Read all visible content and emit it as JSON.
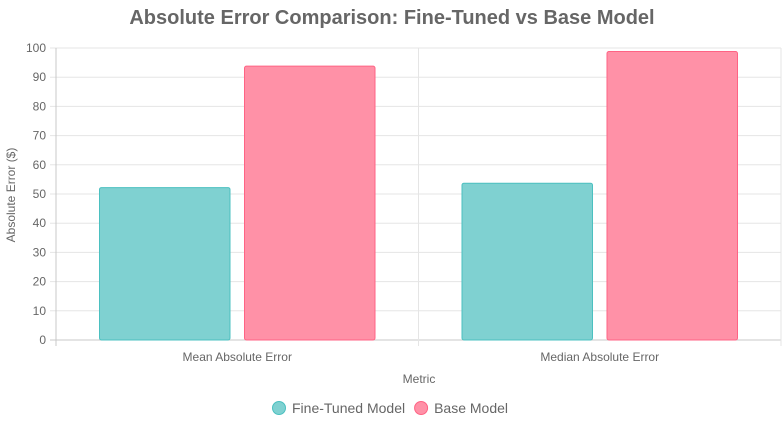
{
  "chart_data": {
    "type": "bar",
    "title": "Absolute Error Comparison: Fine-Tuned vs Base Model",
    "xlabel": "Metric",
    "ylabel": "Absolute Error ($)",
    "categories": [
      "Mean Absolute Error",
      "Median Absolute Error"
    ],
    "series": [
      {
        "name": "Fine-Tuned Model",
        "values": [
          52.2,
          53.7
        ],
        "fill": "#7fd1d1",
        "stroke": "#4bc0c0"
      },
      {
        "name": "Base Model",
        "values": [
          93.8,
          98.8
        ],
        "fill": "#ff91a7",
        "stroke": "#ff6384"
      }
    ],
    "ylim": [
      0,
      100
    ],
    "yticks": [
      0,
      10,
      20,
      30,
      40,
      50,
      60,
      70,
      80,
      90,
      100
    ],
    "grid": true,
    "legend": "bottom"
  }
}
